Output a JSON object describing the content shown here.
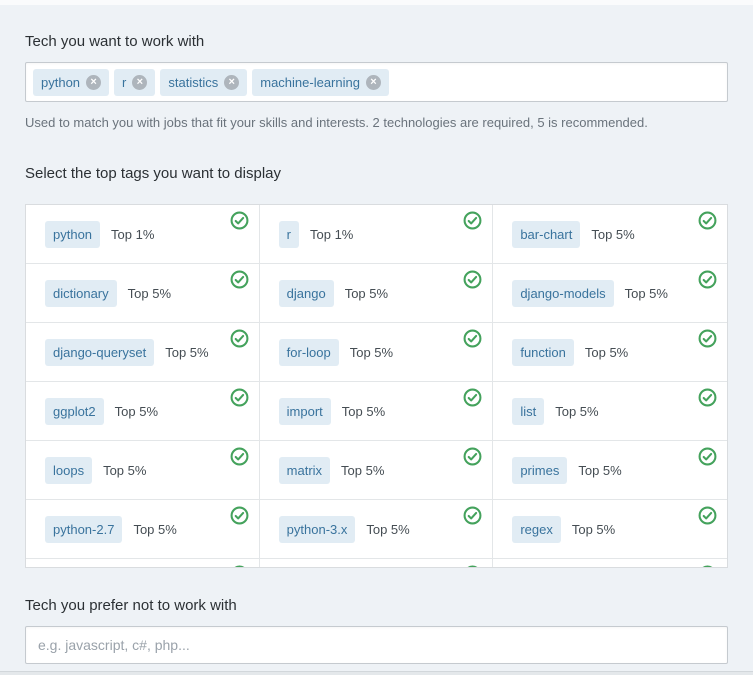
{
  "colors": {
    "page_bg": "#eef2f6",
    "tag_bg": "#e1ecf4",
    "tag_text": "#39739d",
    "check_green": "#44a25c",
    "helper_gray": "#6a737c"
  },
  "tech_want": {
    "label": "Tech you want to work with",
    "tags": [
      "python",
      "r",
      "statistics",
      "machine-learning"
    ],
    "remove_icon_glyph": "×",
    "helper": "Used to match you with jobs that fit your skills and interests. 2 technologies are required, 5 is recommended."
  },
  "top_tags": {
    "label": "Select the top tags you want to display",
    "cells": [
      {
        "tag": "python",
        "rank": "Top 1%",
        "selected": true
      },
      {
        "tag": "r",
        "rank": "Top 1%",
        "selected": true
      },
      {
        "tag": "bar-chart",
        "rank": "Top 5%",
        "selected": true
      },
      {
        "tag": "dictionary",
        "rank": "Top 5%",
        "selected": true
      },
      {
        "tag": "django",
        "rank": "Top 5%",
        "selected": true
      },
      {
        "tag": "django-models",
        "rank": "Top 5%",
        "selected": true
      },
      {
        "tag": "django-queryset",
        "rank": "Top 5%",
        "selected": true
      },
      {
        "tag": "for-loop",
        "rank": "Top 5%",
        "selected": true
      },
      {
        "tag": "function",
        "rank": "Top 5%",
        "selected": true
      },
      {
        "tag": "ggplot2",
        "rank": "Top 5%",
        "selected": true
      },
      {
        "tag": "import",
        "rank": "Top 5%",
        "selected": true
      },
      {
        "tag": "list",
        "rank": "Top 5%",
        "selected": true
      },
      {
        "tag": "loops",
        "rank": "Top 5%",
        "selected": true
      },
      {
        "tag": "matrix",
        "rank": "Top 5%",
        "selected": true
      },
      {
        "tag": "primes",
        "rank": "Top 5%",
        "selected": true
      },
      {
        "tag": "python-2.7",
        "rank": "Top 5%",
        "selected": true
      },
      {
        "tag": "python-3.x",
        "rank": "Top 5%",
        "selected": true
      },
      {
        "tag": "regex",
        "rank": "Top 5%",
        "selected": true
      }
    ],
    "clipped_partial_cells": 3
  },
  "tech_avoid": {
    "label": "Tech you prefer not to work with",
    "placeholder": "e.g. javascript, c#, php...",
    "value": ""
  }
}
